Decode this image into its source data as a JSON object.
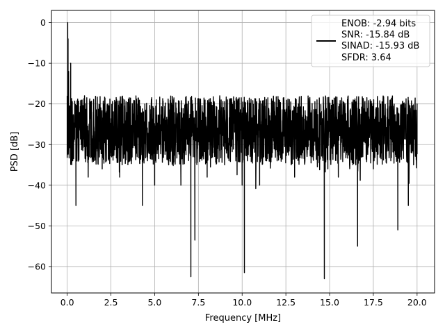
{
  "chart_data": {
    "type": "line",
    "title": "",
    "xlabel": "Frequency [MHz]",
    "ylabel": "PSD [dB]",
    "xlim": [
      -0.9,
      21.0
    ],
    "ylim": [
      -66.5,
      3.0
    ],
    "xticks": [
      0.0,
      2.5,
      5.0,
      7.5,
      10.0,
      12.5,
      15.0,
      17.5,
      20.0
    ],
    "xtick_labels": [
      "0.0",
      "2.5",
      "5.0",
      "7.5",
      "10.0",
      "12.5",
      "15.0",
      "17.5",
      "20.0"
    ],
    "yticks": [
      0,
      -10,
      -20,
      -30,
      -40,
      -50,
      -60
    ],
    "ytick_labels": [
      "0",
      "−10",
      "−20",
      "−30",
      "−40",
      "−50",
      "−60"
    ],
    "grid": true,
    "legend_position": "top-right",
    "legend_lines": [
      "ENOB: -2.94 bits",
      "SNR: -15.84 dB",
      "SINAD: -15.93 dB",
      "SFDR: 3.64"
    ],
    "series": [
      {
        "color": "#000000",
        "noise_floor_band_db": [
          -35.0,
          -18.0
        ],
        "x": [
          0.0,
          0.03,
          0.05,
          0.08,
          0.12,
          0.2,
          0.3,
          0.5,
          0.8,
          1.2,
          1.5,
          2.0,
          2.5,
          2.8,
          3.0,
          3.5,
          4.0,
          4.3,
          4.5,
          5.0,
          5.5,
          5.8,
          6.0,
          6.5,
          6.9,
          7.07,
          7.2,
          7.3,
          7.5,
          8.0,
          8.5,
          9.0,
          9.5,
          10.0,
          10.13,
          10.3,
          10.5,
          11.0,
          11.5,
          12.0,
          12.5,
          13.0,
          13.5,
          14.0,
          14.5,
          14.7,
          14.9,
          15.0,
          15.5,
          16.0,
          16.5,
          16.6,
          17.0,
          17.5,
          18.0,
          18.5,
          18.9,
          19.0,
          19.5,
          19.8,
          20.0
        ],
        "y": [
          -18.0,
          0.0,
          -4.0,
          -12.0,
          -22.0,
          -10.0,
          -34.0,
          -45.0,
          -30.0,
          -38.0,
          -22.0,
          -36.0,
          -25.0,
          -30.0,
          -38.0,
          -20.0,
          -33.0,
          -45.0,
          -24.0,
          -40.0,
          -28.0,
          -35.0,
          -22.0,
          -40.0,
          -30.0,
          -62.5,
          -33.0,
          -53.5,
          -25.0,
          -38.0,
          -28.0,
          -35.0,
          -22.0,
          -40.0,
          -61.5,
          -34.0,
          -25.0,
          -40.0,
          -30.0,
          -34.0,
          -22.0,
          -38.0,
          -28.0,
          -33.0,
          -24.0,
          -63.0,
          -36.0,
          -25.0,
          -38.0,
          -30.0,
          -35.0,
          -55.0,
          -26.0,
          -36.0,
          -30.0,
          -34.0,
          -51.0,
          -28.0,
          -45.0,
          -30.0,
          -20.0
        ]
      }
    ]
  }
}
